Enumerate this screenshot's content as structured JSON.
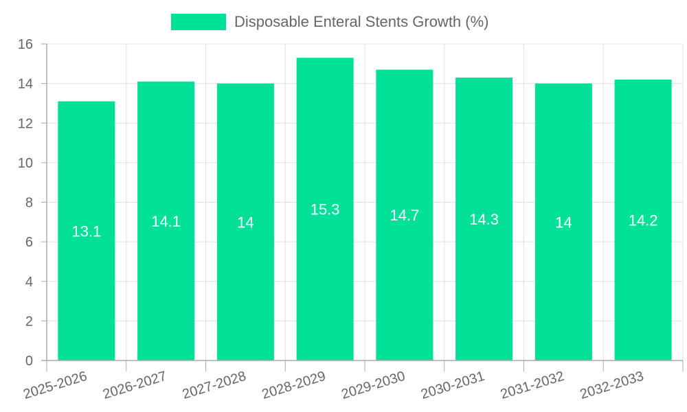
{
  "chart_data": {
    "type": "bar",
    "categories": [
      "2025-2026",
      "2026-2027",
      "2027-2028",
      "2028-2029",
      "2029-2030",
      "2030-2031",
      "2031-2032",
      "2032-2033"
    ],
    "series": [
      {
        "name": "Disposable Enteral Stents Growth (%)",
        "values": [
          13.1,
          14.1,
          14,
          15.3,
          14.7,
          14.3,
          14,
          14.2
        ]
      }
    ],
    "data_labels": [
      "13.1",
      "14.1",
      "14",
      "15.3",
      "14.7",
      "14.3",
      "14",
      "14.2"
    ],
    "y_ticks": [
      "0",
      "2",
      "4",
      "6",
      "8",
      "10",
      "12",
      "14",
      "16"
    ],
    "ylim": [
      0,
      16
    ],
    "grid": true,
    "legend_position": "top",
    "bar_color": "#00E096",
    "grid_color": "#e0e0e0",
    "axis_color": "#aaaaaa"
  }
}
